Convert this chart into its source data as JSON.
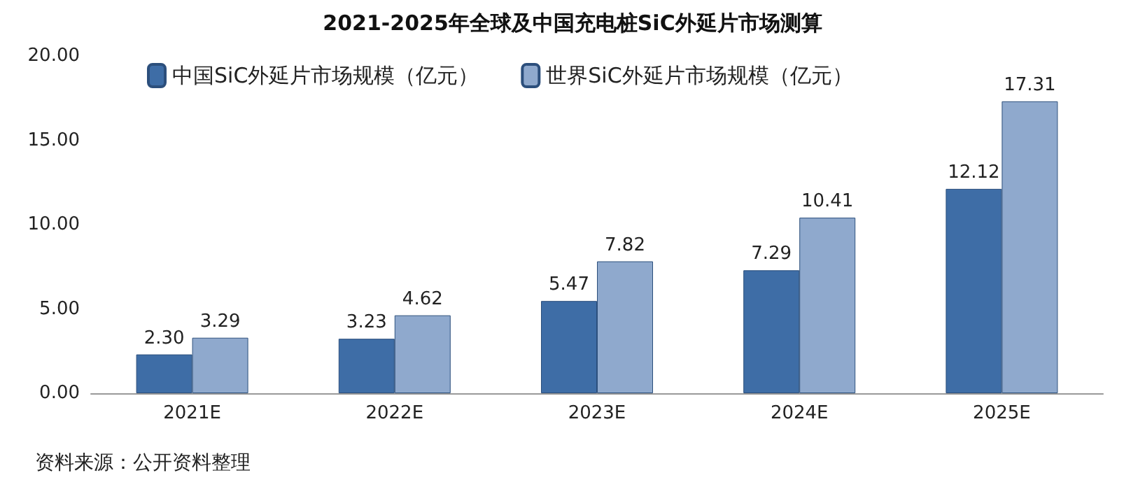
{
  "chart_data": {
    "type": "bar",
    "title": "2021-2025年全球及中国充电桩SiC外延片市场测算",
    "categories": [
      "2021E",
      "2022E",
      "2023E",
      "2024E",
      "2025E"
    ],
    "series": [
      {
        "name": "中国SiC外延片市场规模（亿元）",
        "color": "#3e6da6",
        "values": [
          2.3,
          3.23,
          5.47,
          7.29,
          12.12
        ],
        "value_labels": [
          "2.30",
          "3.23",
          "5.47",
          "7.29",
          "12.12"
        ]
      },
      {
        "name": "世界SiC外延片市场规模（亿元）",
        "color": "#8fa9cd",
        "values": [
          3.29,
          4.62,
          7.82,
          10.41,
          17.31
        ],
        "value_labels": [
          "3.29",
          "4.62",
          "7.82",
          "10.41",
          "17.31"
        ]
      }
    ],
    "ylim": [
      0,
      20
    ],
    "yticks": [
      {
        "value": 0,
        "label": "0.00"
      },
      {
        "value": 5,
        "label": "5.00"
      },
      {
        "value": 10,
        "label": "10.00"
      },
      {
        "value": 15,
        "label": "15.00"
      },
      {
        "value": 20,
        "label": "20.00"
      }
    ],
    "grid": false,
    "legend": "top left",
    "annotations": [
      "资料来源：公开资料整理"
    ]
  }
}
